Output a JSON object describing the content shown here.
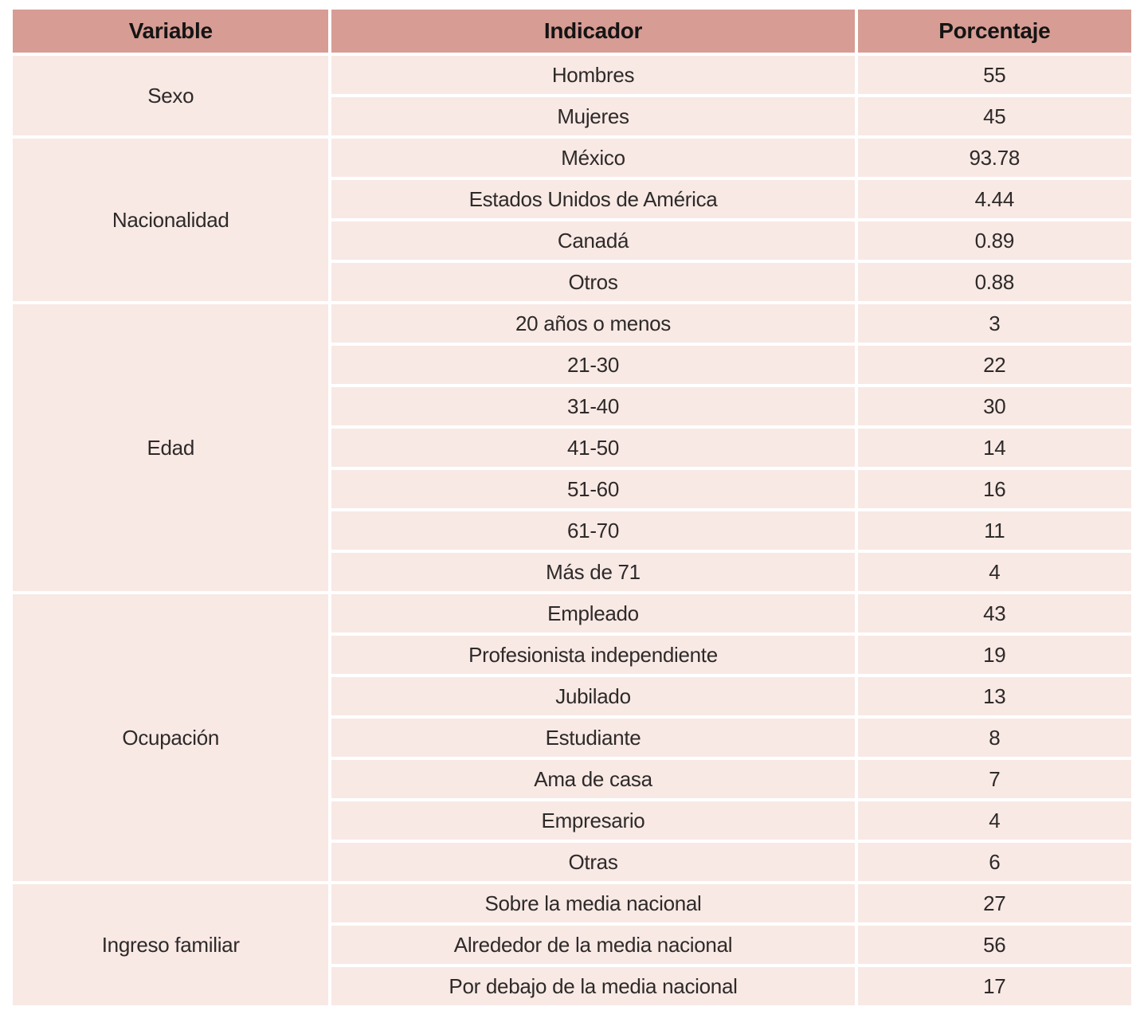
{
  "chart_data": {
    "type": "table",
    "columns": [
      "Variable",
      "Indicador",
      "Porcentaje"
    ],
    "groups": [
      {
        "variable": "Sexo",
        "rows": [
          [
            "Hombres",
            55
          ],
          [
            "Mujeres",
            45
          ]
        ]
      },
      {
        "variable": "Nacionalidad",
        "rows": [
          [
            "México",
            93.78
          ],
          [
            "Estados Unidos de América",
            4.44
          ],
          [
            "Canadá",
            0.89
          ],
          [
            "Otros",
            0.88
          ]
        ]
      },
      {
        "variable": "Edad",
        "rows": [
          [
            "20 años o menos",
            3
          ],
          [
            "21-30",
            22
          ],
          [
            "31-40",
            30
          ],
          [
            "41-50",
            14
          ],
          [
            "51-60",
            16
          ],
          [
            "61-70",
            11
          ],
          [
            "Más de 71",
            4
          ]
        ]
      },
      {
        "variable": "Ocupación",
        "rows": [
          [
            "Empleado",
            43
          ],
          [
            "Profesionista independiente",
            19
          ],
          [
            "Jubilado",
            13
          ],
          [
            "Estudiante",
            8
          ],
          [
            "Ama de casa",
            7
          ],
          [
            "Empresario",
            4
          ],
          [
            "Otras",
            6
          ]
        ]
      },
      {
        "variable": "Ingreso familiar",
        "rows": [
          [
            "Sobre la media nacional",
            27
          ],
          [
            "Alrededor de la media nacional",
            56
          ],
          [
            "Por debajo de la media nacional",
            17
          ]
        ]
      }
    ]
  },
  "colors": {
    "header_bg": "#d79c94",
    "row_bg": "#f8e9e5",
    "header_text": "#141414",
    "body_text": "#2e2a28",
    "page_bg": "#ffffff"
  }
}
